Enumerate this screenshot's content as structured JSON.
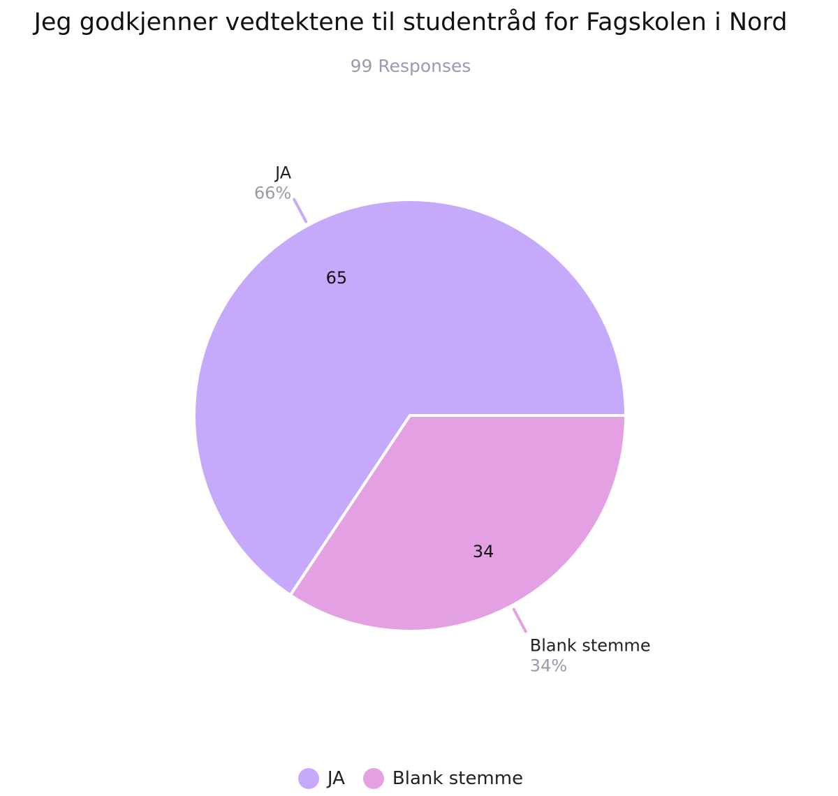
{
  "chart_data": {
    "type": "pie",
    "title": "Jeg godkjenner vedtektene til studentråd for Fagskolen i Nord",
    "subtitle": "99 Responses",
    "legend_position": "bottom",
    "slices": [
      {
        "label": "JA",
        "value": 65,
        "percent_label": "66%",
        "color": "#c6a9fb"
      },
      {
        "label": "Blank stemme",
        "value": 34,
        "percent_label": "34%",
        "color": "#e3a0e3"
      }
    ]
  }
}
